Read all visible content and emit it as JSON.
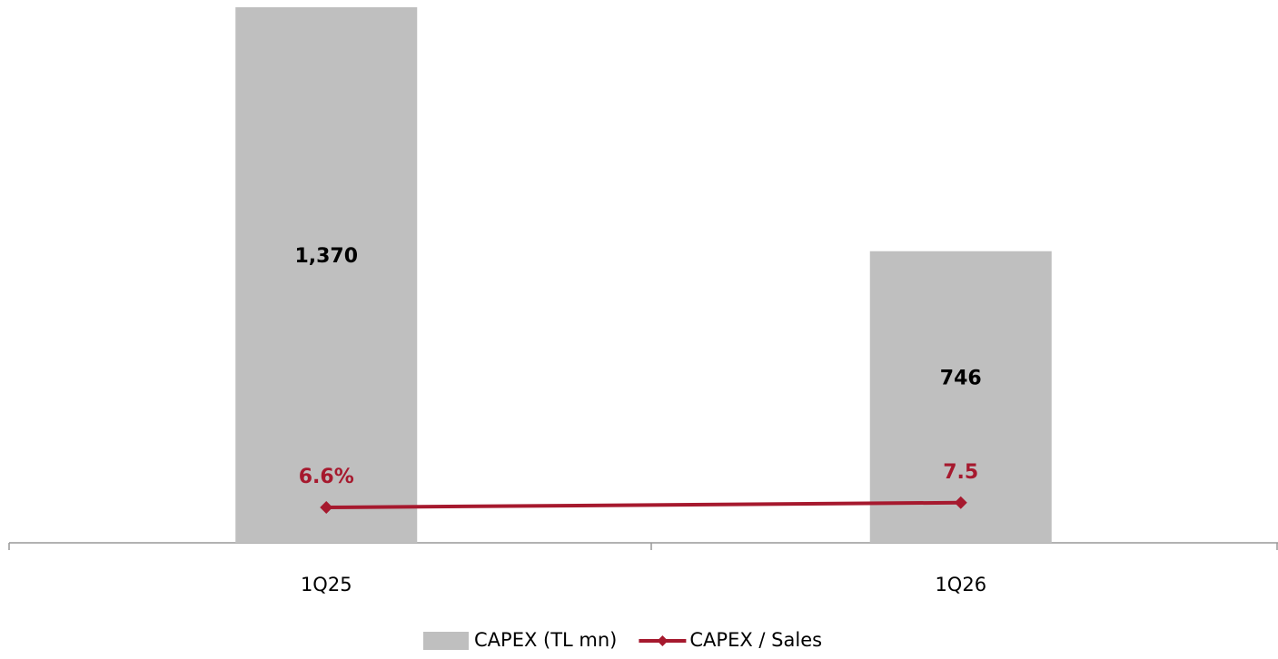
{
  "chart_data": {
    "type": "bar",
    "categories": [
      "1Q25",
      "1Q26"
    ],
    "series": [
      {
        "name": "CAPEX (TL mn)",
        "type": "bar",
        "color": "#bfbfbf",
        "values": [
          1370,
          746
        ],
        "value_labels": [
          "1,370",
          "746"
        ]
      },
      {
        "name": "CAPEX / Sales",
        "type": "line",
        "axis": "y2",
        "color": "#a6192e",
        "values": [
          6.6,
          7.5
        ],
        "value_labels": [
          "6.6%",
          "7.5"
        ]
      }
    ],
    "ylim": [
      0,
      1370
    ],
    "y2lim": [
      0,
      100
    ]
  }
}
